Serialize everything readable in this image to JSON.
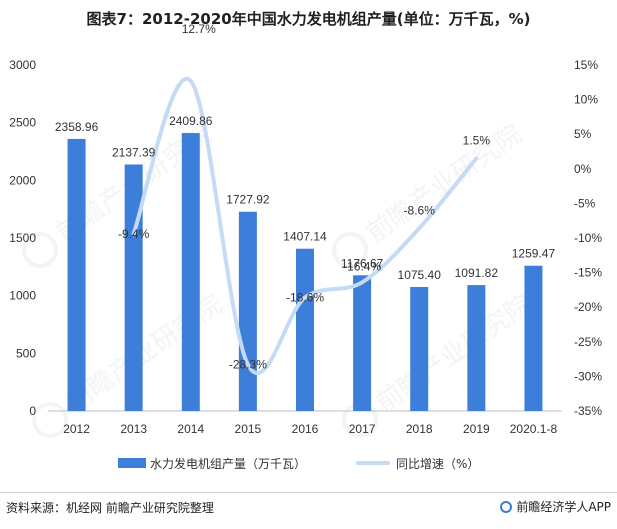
{
  "title": "图表7：2012-2020年中国水力发电机组产量(单位：万千瓦，%)",
  "source": "资料来源：机经网 前瞻产业研究院整理",
  "brand": "前瞻经济学人APP",
  "colors": {
    "bar": "#3d7edb",
    "line": "#c5daf5",
    "axis": "#bfbfbf"
  },
  "chart_data": {
    "type": "bar",
    "categories": [
      "2012",
      "2013",
      "2014",
      "2015",
      "2016",
      "2017",
      "2018",
      "2019",
      "2020.1-8"
    ],
    "series": [
      {
        "name": "水力发电机组产量（万千瓦）",
        "type": "bar",
        "axis": "left",
        "values": [
          2358.96,
          2137.39,
          2409.86,
          1727.92,
          1407.14,
          1176.67,
          1075.4,
          1091.82,
          1259.47
        ],
        "labels": [
          "2358.96",
          "2137.39",
          "2409.86",
          "1727.92",
          "1407.14",
          "1176.67",
          "1075.40",
          "1091.82",
          "1259.47"
        ]
      },
      {
        "name": "同比增速（%）",
        "type": "line",
        "axis": "right",
        "smooth": true,
        "values": [
          null,
          -9.4,
          12.7,
          -28.3,
          -18.6,
          -16.4,
          -8.6,
          1.5,
          null
        ],
        "labels": [
          "",
          "-9.4%",
          "12.7%",
          "-28.3%",
          "-18.6%",
          "-16.4%",
          "-8.6%",
          "1.5%",
          ""
        ]
      }
    ],
    "y_left": {
      "min": 0,
      "max": 3000,
      "ticks": [
        "0",
        "500",
        "1000",
        "1500",
        "2000",
        "2500",
        "3000"
      ]
    },
    "y_right": {
      "min": -35,
      "max": 15,
      "ticks": [
        "-35%",
        "-30%",
        "-25%",
        "-20%",
        "-15%",
        "-10%",
        "-5%",
        "0%",
        "5%",
        "10%",
        "15%"
      ]
    },
    "grid": false,
    "legend_position": "bottom"
  }
}
